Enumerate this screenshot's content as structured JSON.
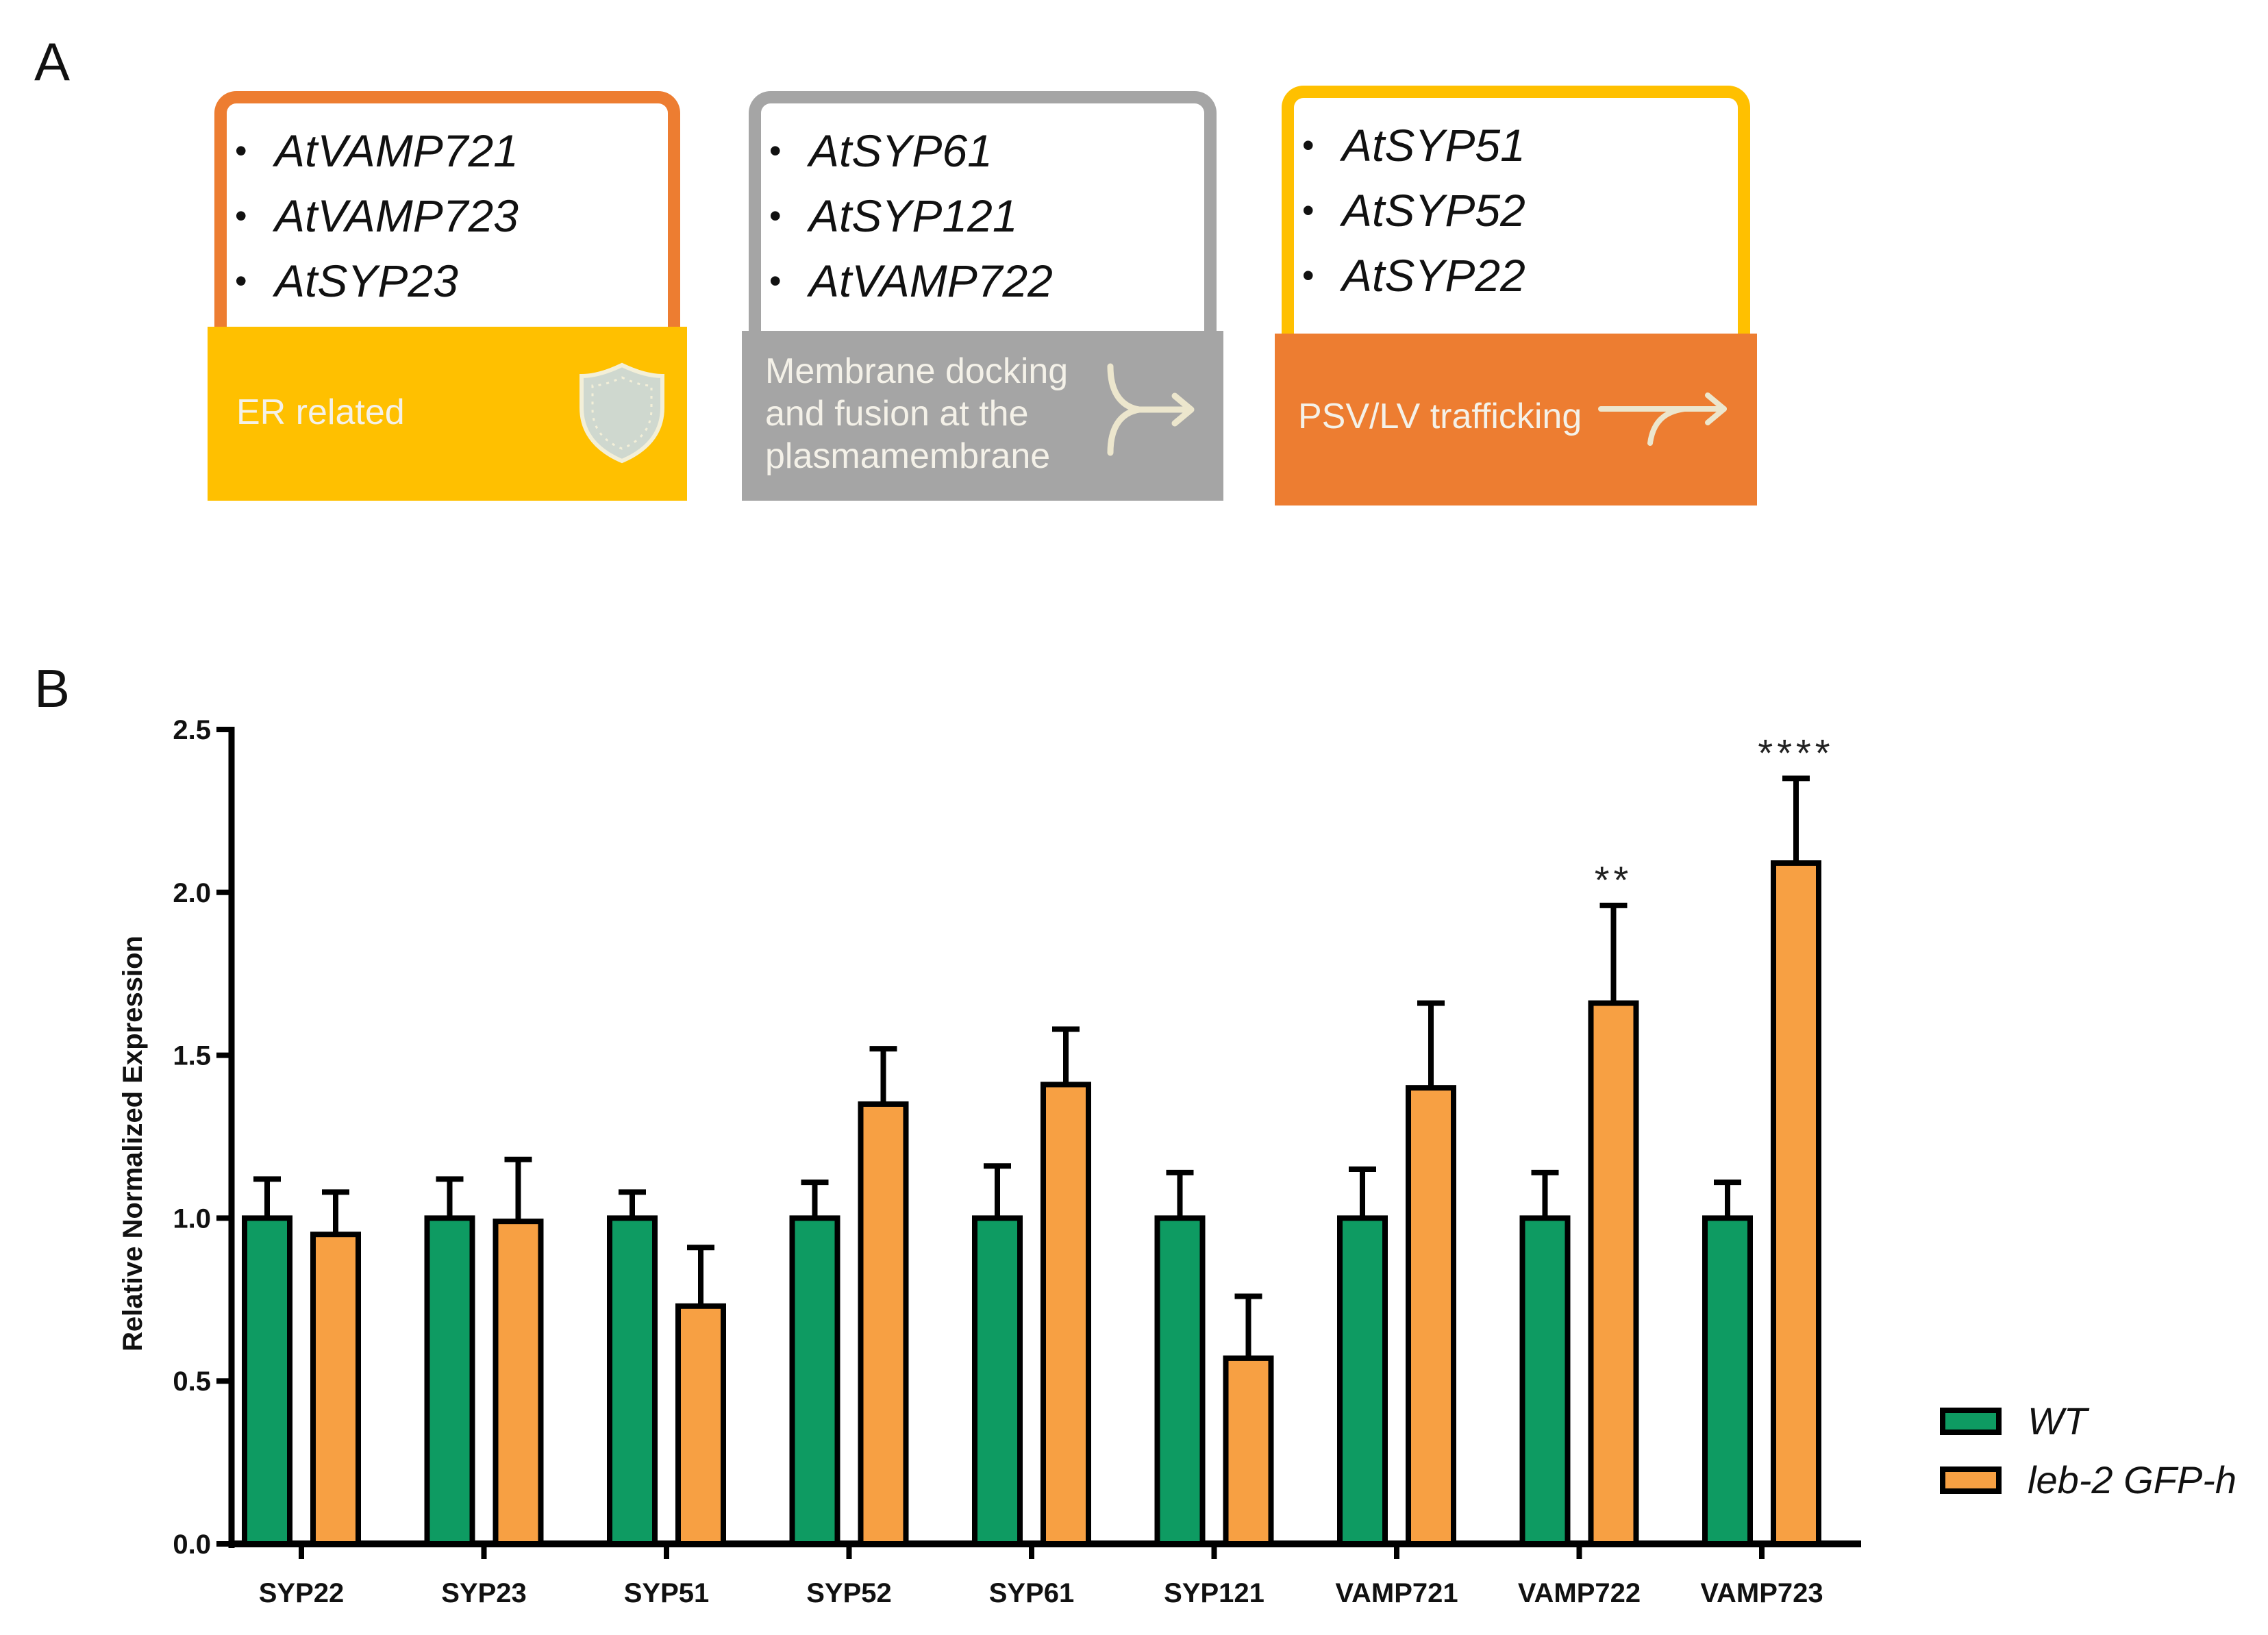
{
  "panel_a": {
    "letter": "A",
    "cards": [
      {
        "genes": [
          "AtVAMP721",
          "AtVAMP723",
          "AtSYP23"
        ],
        "footer_lines": [
          "ER related"
        ],
        "icon": "shield-icon",
        "frame_color": "#ED7D31",
        "footer_color": "#FFC000"
      },
      {
        "genes": [
          "AtSYP61",
          "AtSYP121",
          "AtVAMP722"
        ],
        "footer_lines": [
          "Membrane docking",
          "and fusion at the",
          "plasmamembrane"
        ],
        "icon": "merge-arrow-icon",
        "frame_color": "#A5A5A5",
        "footer_color": "#A5A5A5"
      },
      {
        "genes": [
          "AtSYP51",
          "AtSYP52",
          "AtSYP22"
        ],
        "footer_lines": [
          "PSV/LV trafficking"
        ],
        "icon": "split-arrow-icon",
        "frame_color": "#FFC000",
        "footer_color": "#ED7D31"
      }
    ]
  },
  "panel_b": {
    "letter": "B"
  },
  "chart_data": {
    "type": "bar",
    "title": "",
    "xlabel": "",
    "ylabel": "Relative Normalized Expression",
    "ylim": [
      0,
      2.5
    ],
    "yticks": [
      "0.0",
      "0.5",
      "1.0",
      "1.5",
      "2.0",
      "2.5"
    ],
    "ytick_values": [
      0,
      0.5,
      1.0,
      1.5,
      2.0,
      2.5
    ],
    "categories": [
      "SYP22",
      "SYP23",
      "SYP51",
      "SYP52",
      "SYP61",
      "SYP121",
      "VAMP721",
      "VAMP722",
      "VAMP723"
    ],
    "series": [
      {
        "name": "WT",
        "color": "#0E9B62",
        "values": [
          1.0,
          1.0,
          1.0,
          1.0,
          1.0,
          1.0,
          1.0,
          1.0,
          1.0
        ],
        "errors": [
          0.12,
          0.12,
          0.08,
          0.11,
          0.16,
          0.14,
          0.15,
          0.14,
          0.11
        ]
      },
      {
        "name": "leb-2 GFP-h",
        "color": "#F7A043",
        "values": [
          0.95,
          0.99,
          0.73,
          1.35,
          1.41,
          0.57,
          1.4,
          1.66,
          2.09
        ],
        "errors": [
          0.13,
          0.19,
          0.18,
          0.17,
          0.17,
          0.19,
          0.26,
          0.3,
          0.26
        ]
      }
    ],
    "annotations": [
      {
        "category": "VAMP722",
        "text": "**"
      },
      {
        "category": "VAMP723",
        "text": "****"
      }
    ],
    "legend": {
      "position": "right",
      "labels": [
        "WT",
        "leb-2 GFP-h"
      ]
    },
    "grid": false
  }
}
